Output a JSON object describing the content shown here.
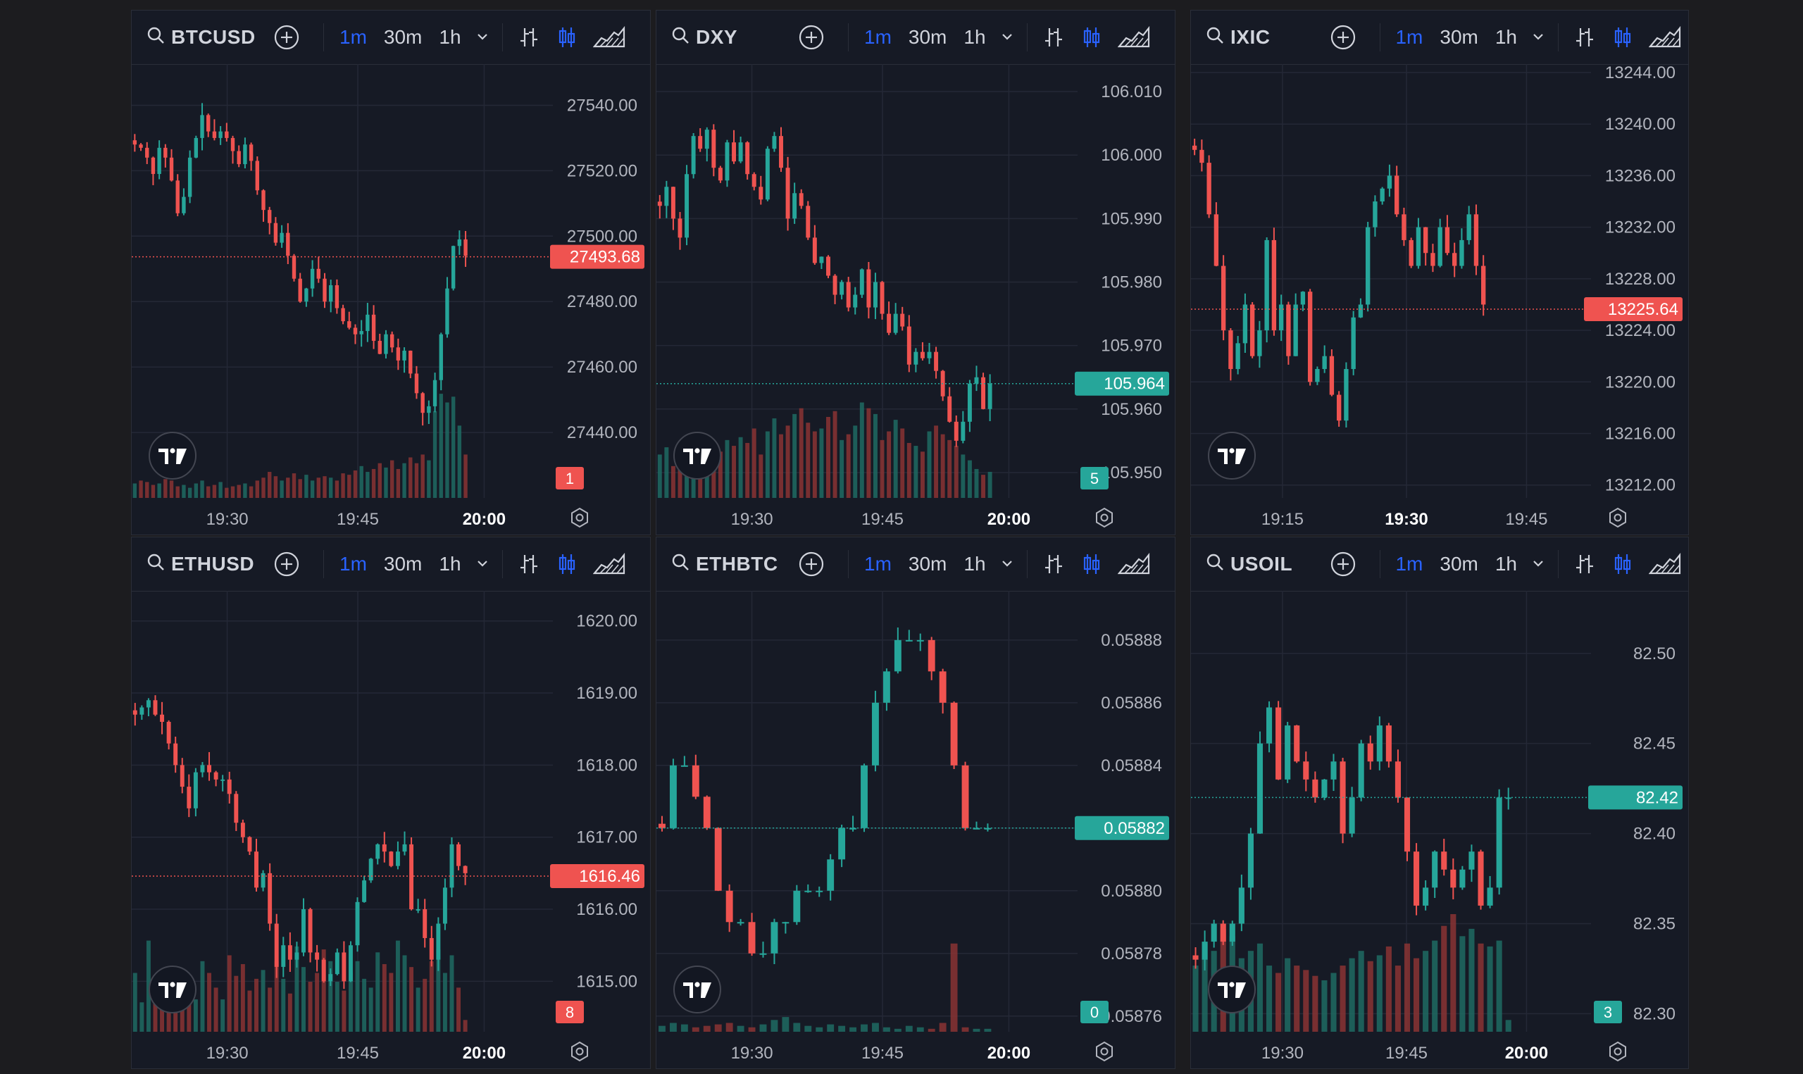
{
  "timeframes": [
    "1m",
    "30m",
    "1h"
  ],
  "colors": {
    "up": "#26a69a",
    "down": "#ef5350",
    "accent": "#2962ff",
    "grid": "#242836",
    "bg": "#161a25"
  },
  "icons": [
    "search-icon",
    "add-symbol-icon",
    "chevron-down-icon",
    "bar-chart-icon",
    "candles-icon",
    "area-chart-icon",
    "settings-icon",
    "tradingview-logo"
  ],
  "chart_data": [
    {
      "type": "candlestick",
      "symbol": "BTCUSD",
      "ylim": [
        27420,
        27550
      ],
      "y_ticks": [
        "27540.00",
        "27520.00",
        "27500.00",
        "27480.00",
        "27460.00",
        "27440.00"
      ],
      "x_ticks": [
        "19:30",
        "19:45",
        "20:00"
      ],
      "x_bold": "20:00",
      "last_price": "27493.68",
      "last_value": 27493.68,
      "last_dir": "down",
      "countdown": "1",
      "closes": [
        27528,
        27527,
        27524,
        27519,
        27527,
        27524,
        27517,
        27507,
        27512,
        27524,
        27530,
        27537,
        27532,
        27530,
        27532,
        27530,
        27526,
        27522,
        27528,
        27523,
        27514,
        27508,
        27504,
        27498,
        27501,
        27494,
        27487,
        27480,
        27484,
        27490,
        27487,
        27480,
        27485,
        27478,
        27474,
        27472,
        27470,
        27471,
        27476,
        27468,
        27464,
        27470,
        27466,
        27462,
        27465,
        27458,
        27452,
        27446,
        27448,
        27456,
        27470,
        27484,
        27497,
        27499,
        27494
      ],
      "vols": [
        0.1,
        0.12,
        0.11,
        0.09,
        0.1,
        0.13,
        0.12,
        0.08,
        0.09,
        0.07,
        0.1,
        0.12,
        0.08,
        0.09,
        0.11,
        0.07,
        0.08,
        0.09,
        0.1,
        0.08,
        0.12,
        0.14,
        0.18,
        0.15,
        0.12,
        0.14,
        0.17,
        0.13,
        0.16,
        0.12,
        0.14,
        0.15,
        0.14,
        0.12,
        0.17,
        0.16,
        0.19,
        0.22,
        0.18,
        0.2,
        0.24,
        0.21,
        0.26,
        0.2,
        0.24,
        0.28,
        0.24,
        0.3,
        0.26,
        0.6,
        0.72,
        0.66,
        0.7,
        0.5,
        0.3
      ]
    },
    {
      "type": "candlestick",
      "symbol": "DXY",
      "ylim": [
        105.946,
        106.013
      ],
      "y_ticks": [
        "106.010",
        "106.000",
        "105.990",
        "105.980",
        "105.970",
        "105.960",
        "105.950"
      ],
      "x_ticks": [
        "19:30",
        "19:45",
        "20:00"
      ],
      "x_bold": "20:00",
      "last_price": "105.964",
      "last_value": 105.964,
      "last_dir": "up",
      "countdown": "5",
      "closes": [
        105.992,
        105.995,
        105.99,
        105.987,
        105.997,
        106.003,
        106.001,
        106.004,
        105.998,
        105.996,
        106.002,
        105.999,
        106.002,
        105.997,
        105.995,
        105.993,
        106.001,
        106.003,
        105.998,
        105.99,
        105.994,
        105.992,
        105.987,
        105.983,
        105.984,
        105.981,
        105.978,
        105.98,
        105.976,
        105.978,
        105.982,
        105.976,
        105.98,
        105.975,
        105.972,
        105.975,
        105.973,
        105.967,
        105.969,
        105.968,
        105.969,
        105.966,
        105.962,
        105.958,
        105.955,
        105.958,
        105.964,
        105.965,
        105.96,
        105.964
      ],
      "vols": [
        0.3,
        0.35,
        0.22,
        0.28,
        0.18,
        0.24,
        0.2,
        0.26,
        0.3,
        0.32,
        0.4,
        0.36,
        0.42,
        0.38,
        0.48,
        0.3,
        0.46,
        0.55,
        0.44,
        0.5,
        0.58,
        0.62,
        0.52,
        0.46,
        0.48,
        0.56,
        0.6,
        0.4,
        0.44,
        0.5,
        0.66,
        0.62,
        0.58,
        0.4,
        0.46,
        0.54,
        0.48,
        0.38,
        0.36,
        0.32,
        0.46,
        0.5,
        0.44,
        0.4,
        0.36,
        0.3,
        0.26,
        0.2,
        0.16,
        0.18
      ]
    },
    {
      "type": "candlestick",
      "symbol": "IXIC",
      "ylim": [
        13211,
        13244
      ],
      "y_ticks": [
        "13244.00",
        "13240.00",
        "13236.00",
        "13232.00",
        "13228.00",
        "13224.00",
        "13220.00",
        "13216.00",
        "13212.00"
      ],
      "x_ticks": [
        "19:15",
        "19:30",
        "19:45"
      ],
      "x_bold": "19:30",
      "last_price": "13225.64",
      "last_value": 13225.64,
      "last_dir": "down",
      "countdown": "",
      "closes": [
        13238,
        13237,
        13233,
        13229,
        13224,
        13221,
        13223,
        13226,
        13222,
        13224,
        13231,
        13224,
        13226,
        13222,
        13226,
        13227,
        13220,
        13221,
        13222,
        13219,
        13217,
        13221,
        13225,
        13226,
        13232,
        13234,
        13235,
        13236,
        13233,
        13231,
        13229,
        13232,
        13230,
        13229,
        13232,
        13230,
        13229,
        13231,
        13233,
        13229,
        13226
      ],
      "vols": []
    },
    {
      "type": "candlestick",
      "symbol": "ETHUSD",
      "ylim": [
        1614.3,
        1620.3
      ],
      "y_ticks": [
        "1620.00",
        "1619.00",
        "1618.00",
        "1617.00",
        "1616.00",
        "1615.00"
      ],
      "x_ticks": [
        "19:30",
        "19:45",
        "20:00"
      ],
      "x_bold": "20:00",
      "last_price": "1616.46",
      "last_value": 1616.46,
      "last_dir": "down",
      "countdown": "8",
      "closes": [
        1618.7,
        1618.8,
        1618.9,
        1618.7,
        1618.6,
        1618.3,
        1618.0,
        1617.7,
        1617.4,
        1617.9,
        1618.0,
        1617.9,
        1617.8,
        1617.8,
        1617.6,
        1617.2,
        1617.0,
        1616.8,
        1616.3,
        1616.5,
        1615.8,
        1615.2,
        1615.5,
        1615.3,
        1615.4,
        1616.0,
        1615.4,
        1615.3,
        1615.0,
        1615.1,
        1615.4,
        1615.0,
        1615.5,
        1616.1,
        1616.4,
        1616.7,
        1616.9,
        1616.8,
        1616.6,
        1616.8,
        1616.9,
        1616.0,
        1616.0,
        1615.6,
        1615.3,
        1615.8,
        1616.3,
        1616.9,
        1616.6,
        1616.5
      ],
      "vols": [
        0.4,
        0.2,
        0.62,
        0.3,
        0.26,
        0.44,
        0.34,
        0.28,
        0.3,
        0.22,
        0.48,
        0.4,
        0.3,
        0.22,
        0.52,
        0.38,
        0.46,
        0.28,
        0.36,
        0.42,
        0.3,
        0.48,
        0.36,
        0.26,
        0.58,
        0.44,
        0.34,
        0.4,
        0.56,
        0.48,
        0.34,
        0.28,
        0.4,
        0.48,
        0.36,
        0.3,
        0.54,
        0.46,
        0.4,
        0.62,
        0.52,
        0.44,
        0.3,
        0.36,
        0.48,
        0.56,
        0.4,
        0.52,
        0.3,
        0.08
      ]
    },
    {
      "type": "candlestick",
      "symbol": "ETHBTC",
      "ylim": [
        0.058755,
        0.058893
      ],
      "y_ticks": [
        "0.05888",
        "0.05886",
        "0.05884",
        "0.05882",
        "0.05880",
        "0.05878",
        "0.05876"
      ],
      "x_ticks": [
        "19:30",
        "19:45",
        "20:00"
      ],
      "x_bold": "20:00",
      "last_price": "0.05882",
      "last_value": 0.05882,
      "last_dir": "up",
      "countdown": "0",
      "closes": [
        0.05882,
        0.05884,
        0.05884,
        0.05883,
        0.05882,
        0.0588,
        0.05879,
        0.05879,
        0.05878,
        0.05878,
        0.05879,
        0.05879,
        0.0588,
        0.0588,
        0.0588,
        0.05881,
        0.05882,
        0.05882,
        0.05884,
        0.05886,
        0.05887,
        0.05888,
        0.05888,
        0.05888,
        0.05887,
        0.05886,
        0.05884,
        0.05882,
        0.05882,
        0.05882
      ],
      "vols": [
        0.04,
        0.06,
        0.05,
        0.03,
        0.04,
        0.05,
        0.06,
        0.04,
        0.03,
        0.05,
        0.08,
        0.1,
        0.06,
        0.04,
        0.03,
        0.05,
        0.04,
        0.03,
        0.05,
        0.06,
        0.03,
        0.02,
        0.04,
        0.03,
        0.02,
        0.06,
        0.6,
        0.03,
        0.02,
        0.02
      ]
    },
    {
      "type": "candlestick",
      "symbol": "USOIL",
      "ylim": [
        82.29,
        82.53
      ],
      "y_ticks": [
        "82.50",
        "82.45",
        "82.40",
        "82.35",
        "82.30"
      ],
      "x_ticks": [
        "19:30",
        "19:45",
        "20:00"
      ],
      "x_bold": "20:00",
      "last_price": "82.42",
      "last_value": 82.42,
      "last_dir": "up",
      "countdown": "3",
      "closes": [
        82.33,
        82.34,
        82.35,
        82.34,
        82.35,
        82.37,
        82.4,
        82.45,
        82.47,
        82.43,
        82.46,
        82.44,
        82.43,
        82.42,
        82.43,
        82.44,
        82.4,
        82.42,
        82.45,
        82.44,
        82.46,
        82.44,
        82.42,
        82.39,
        82.36,
        82.37,
        82.39,
        82.38,
        82.37,
        82.38,
        82.39,
        82.36,
        82.37,
        82.42,
        82.42
      ],
      "vols": [
        0.45,
        0.6,
        0.55,
        0.7,
        0.65,
        0.5,
        0.55,
        0.6,
        0.45,
        0.4,
        0.5,
        0.45,
        0.42,
        0.38,
        0.35,
        0.4,
        0.45,
        0.5,
        0.55,
        0.48,
        0.52,
        0.58,
        0.45,
        0.6,
        0.5,
        0.55,
        0.62,
        0.72,
        0.8,
        0.65,
        0.7,
        0.6,
        0.58,
        0.62,
        0.08
      ]
    }
  ]
}
